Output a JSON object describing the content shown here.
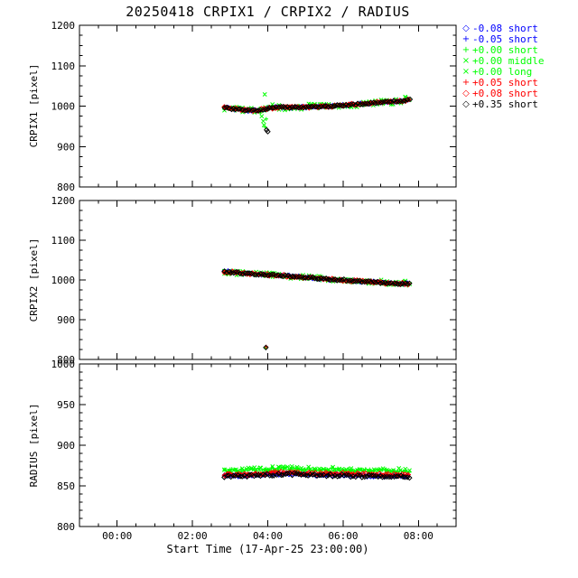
{
  "chart_data": {
    "type": "scatter",
    "title": "20250418 CRPIX1 / CRPIX2 / RADIUS",
    "xlabel": "Start Time (17-Apr-25 23:00:00)",
    "x_axis": {
      "unit": "hours since 17-Apr-25 23:00:00",
      "range": [
        0,
        10
      ],
      "major_ticks": [
        {
          "t": 1,
          "label": "00:00"
        },
        {
          "t": 3,
          "label": "02:00"
        },
        {
          "t": 5,
          "label": "04:00"
        },
        {
          "t": 7,
          "label": "06:00"
        },
        {
          "t": 9,
          "label": "08:00"
        }
      ],
      "minor_subdiv": 4,
      "data_t_start": 3.85,
      "data_t_end": 8.78
    },
    "panels": [
      {
        "ylabel": "CRPIX1 [pixel]",
        "ylim": [
          800,
          1200
        ],
        "yticks": [
          800,
          900,
          1000,
          1100,
          1200
        ],
        "yminor_subdiv": 4,
        "trend": [
          [
            3.85,
            996
          ],
          [
            4.1,
            993
          ],
          [
            4.4,
            990
          ],
          [
            4.7,
            989
          ],
          [
            5.0,
            995
          ],
          [
            5.4,
            997
          ],
          [
            5.8,
            997
          ],
          [
            6.2,
            998
          ],
          [
            6.6,
            1000
          ],
          [
            7.0,
            1002
          ],
          [
            7.4,
            1005
          ],
          [
            7.8,
            1008
          ],
          [
            8.2,
            1010
          ],
          [
            8.5,
            1013
          ],
          [
            8.78,
            1016
          ]
        ]
      },
      {
        "ylabel": "CRPIX2 [pixel]",
        "ylim": [
          800,
          1200
        ],
        "yticks": [
          800,
          900,
          1000,
          1100,
          1200
        ],
        "yminor_subdiv": 4,
        "trend": [
          [
            3.85,
            1021
          ],
          [
            4.2,
            1018
          ],
          [
            4.6,
            1015
          ],
          [
            5.0,
            1013
          ],
          [
            5.4,
            1011
          ],
          [
            5.8,
            1008
          ],
          [
            6.2,
            1005
          ],
          [
            6.6,
            1002
          ],
          [
            7.0,
            1000
          ],
          [
            7.4,
            997
          ],
          [
            7.8,
            995
          ],
          [
            8.2,
            992
          ],
          [
            8.5,
            991
          ],
          [
            8.78,
            990
          ]
        ]
      },
      {
        "ylabel": "RADIUS [pixel]",
        "ylim": [
          800,
          1000
        ],
        "yticks": [
          800,
          850,
          900,
          950,
          1000
        ],
        "yminor_subdiv": 5,
        "trend": [
          [
            3.85,
            862
          ],
          [
            4.3,
            862
          ],
          [
            4.8,
            863
          ],
          [
            5.2,
            864
          ],
          [
            5.5,
            865
          ],
          [
            5.8,
            864
          ],
          [
            6.2,
            863
          ],
          [
            6.6,
            863
          ],
          [
            7.0,
            863
          ],
          [
            7.4,
            862
          ],
          [
            7.8,
            862
          ],
          [
            8.2,
            862
          ],
          [
            8.78,
            861
          ]
        ]
      }
    ],
    "series": [
      {
        "name": "-0.08 short",
        "color": "#0000ff",
        "symbol": "diamond",
        "glyph": "◇",
        "panels": [
          {
            "offset": 0,
            "amp": 2,
            "step": 0.09
          },
          {
            "offset": 0,
            "amp": 2,
            "step": 0.09
          },
          {
            "offset": 0.5,
            "amp": 1.2,
            "step": 0.09
          }
        ]
      },
      {
        "name": "-0.05 short",
        "color": "#0000ff",
        "symbol": "plus",
        "glyph": "+",
        "panels": [
          {
            "offset": 0,
            "amp": 2,
            "step": 0.085
          },
          {
            "offset": 0,
            "amp": 2,
            "step": 0.085
          },
          {
            "offset": 0.5,
            "amp": 1.2,
            "step": 0.085
          }
        ]
      },
      {
        "name": "+0.00 short",
        "color": "#00ff00",
        "symbol": "plus",
        "glyph": "+",
        "panels": [
          {
            "offset": -1,
            "amp": 4,
            "step": 0.05
          },
          {
            "offset": -1,
            "amp": 4,
            "step": 0.05
          },
          {
            "offset": 7,
            "amp": 1.8,
            "step": 0.05
          }
        ]
      },
      {
        "name": "+0.00 middle",
        "color": "#00ff00",
        "symbol": "x",
        "glyph": "×",
        "panels": [
          {
            "offset": 0,
            "amp": 7,
            "step": 0.12
          },
          {
            "offset": 0,
            "amp": 6,
            "step": 0.12
          },
          {
            "offset": 7.5,
            "amp": 2.2,
            "step": 0.12
          }
        ]
      },
      {
        "name": "+0.00 long",
        "color": "#00ff00",
        "symbol": "x",
        "glyph": "×",
        "panels": [
          {
            "offset": 1,
            "amp": 8,
            "step": 0.16
          },
          {
            "offset": 1,
            "amp": 7,
            "step": 0.16
          },
          {
            "offset": 8,
            "amp": 2.5,
            "step": 0.16
          }
        ]
      },
      {
        "name": "+0.05 short",
        "color": "#ff0000",
        "symbol": "plus",
        "glyph": "+",
        "panels": [
          {
            "offset": 0,
            "amp": 2.5,
            "step": 0.07
          },
          {
            "offset": 0,
            "amp": 2.5,
            "step": 0.07
          },
          {
            "offset": 2,
            "amp": 1.5,
            "step": 0.07
          }
        ]
      },
      {
        "name": "+0.08 short",
        "color": "#ff0000",
        "symbol": "diamond",
        "glyph": "◇",
        "panels": [
          {
            "offset": 0,
            "amp": 2.5,
            "step": 0.075
          },
          {
            "offset": 0,
            "amp": 2.5,
            "step": 0.075
          },
          {
            "offset": 2,
            "amp": 1.5,
            "step": 0.075
          }
        ]
      },
      {
        "name": "+0.35 short",
        "color": "#000000",
        "symbol": "diamond",
        "glyph": "◇",
        "panels": [
          {
            "offset": 0,
            "amp": 2,
            "step": 0.06
          },
          {
            "offset": 0,
            "amp": 2,
            "step": 0.06
          },
          {
            "offset": 0,
            "amp": 1.5,
            "step": 0.06
          }
        ]
      }
    ],
    "outliers": [
      {
        "panel": 0,
        "series": 2,
        "t": 4.8,
        "y": 983
      },
      {
        "panel": 0,
        "series": 4,
        "t": 4.84,
        "y": 975
      },
      {
        "panel": 0,
        "series": 4,
        "t": 4.88,
        "y": 963
      },
      {
        "panel": 0,
        "series": 3,
        "t": 4.9,
        "y": 953
      },
      {
        "panel": 0,
        "series": 2,
        "t": 4.93,
        "y": 948
      },
      {
        "panel": 0,
        "series": 3,
        "t": 4.92,
        "y": 1029
      },
      {
        "panel": 0,
        "series": 2,
        "t": 4.96,
        "y": 968
      },
      {
        "panel": 0,
        "series": 7,
        "t": 4.97,
        "y": 941
      },
      {
        "panel": 0,
        "series": 7,
        "t": 5.0,
        "y": 937
      },
      {
        "panel": 1,
        "series": 2,
        "t": 4.94,
        "y": 829
      },
      {
        "panel": 1,
        "series": 5,
        "t": 4.96,
        "y": 832
      },
      {
        "panel": 1,
        "series": 7,
        "t": 4.95,
        "y": 830
      }
    ],
    "palette": {
      "blue": "#0000ff",
      "green": "#00ff00",
      "red": "#ff0000",
      "black": "#000000"
    }
  }
}
